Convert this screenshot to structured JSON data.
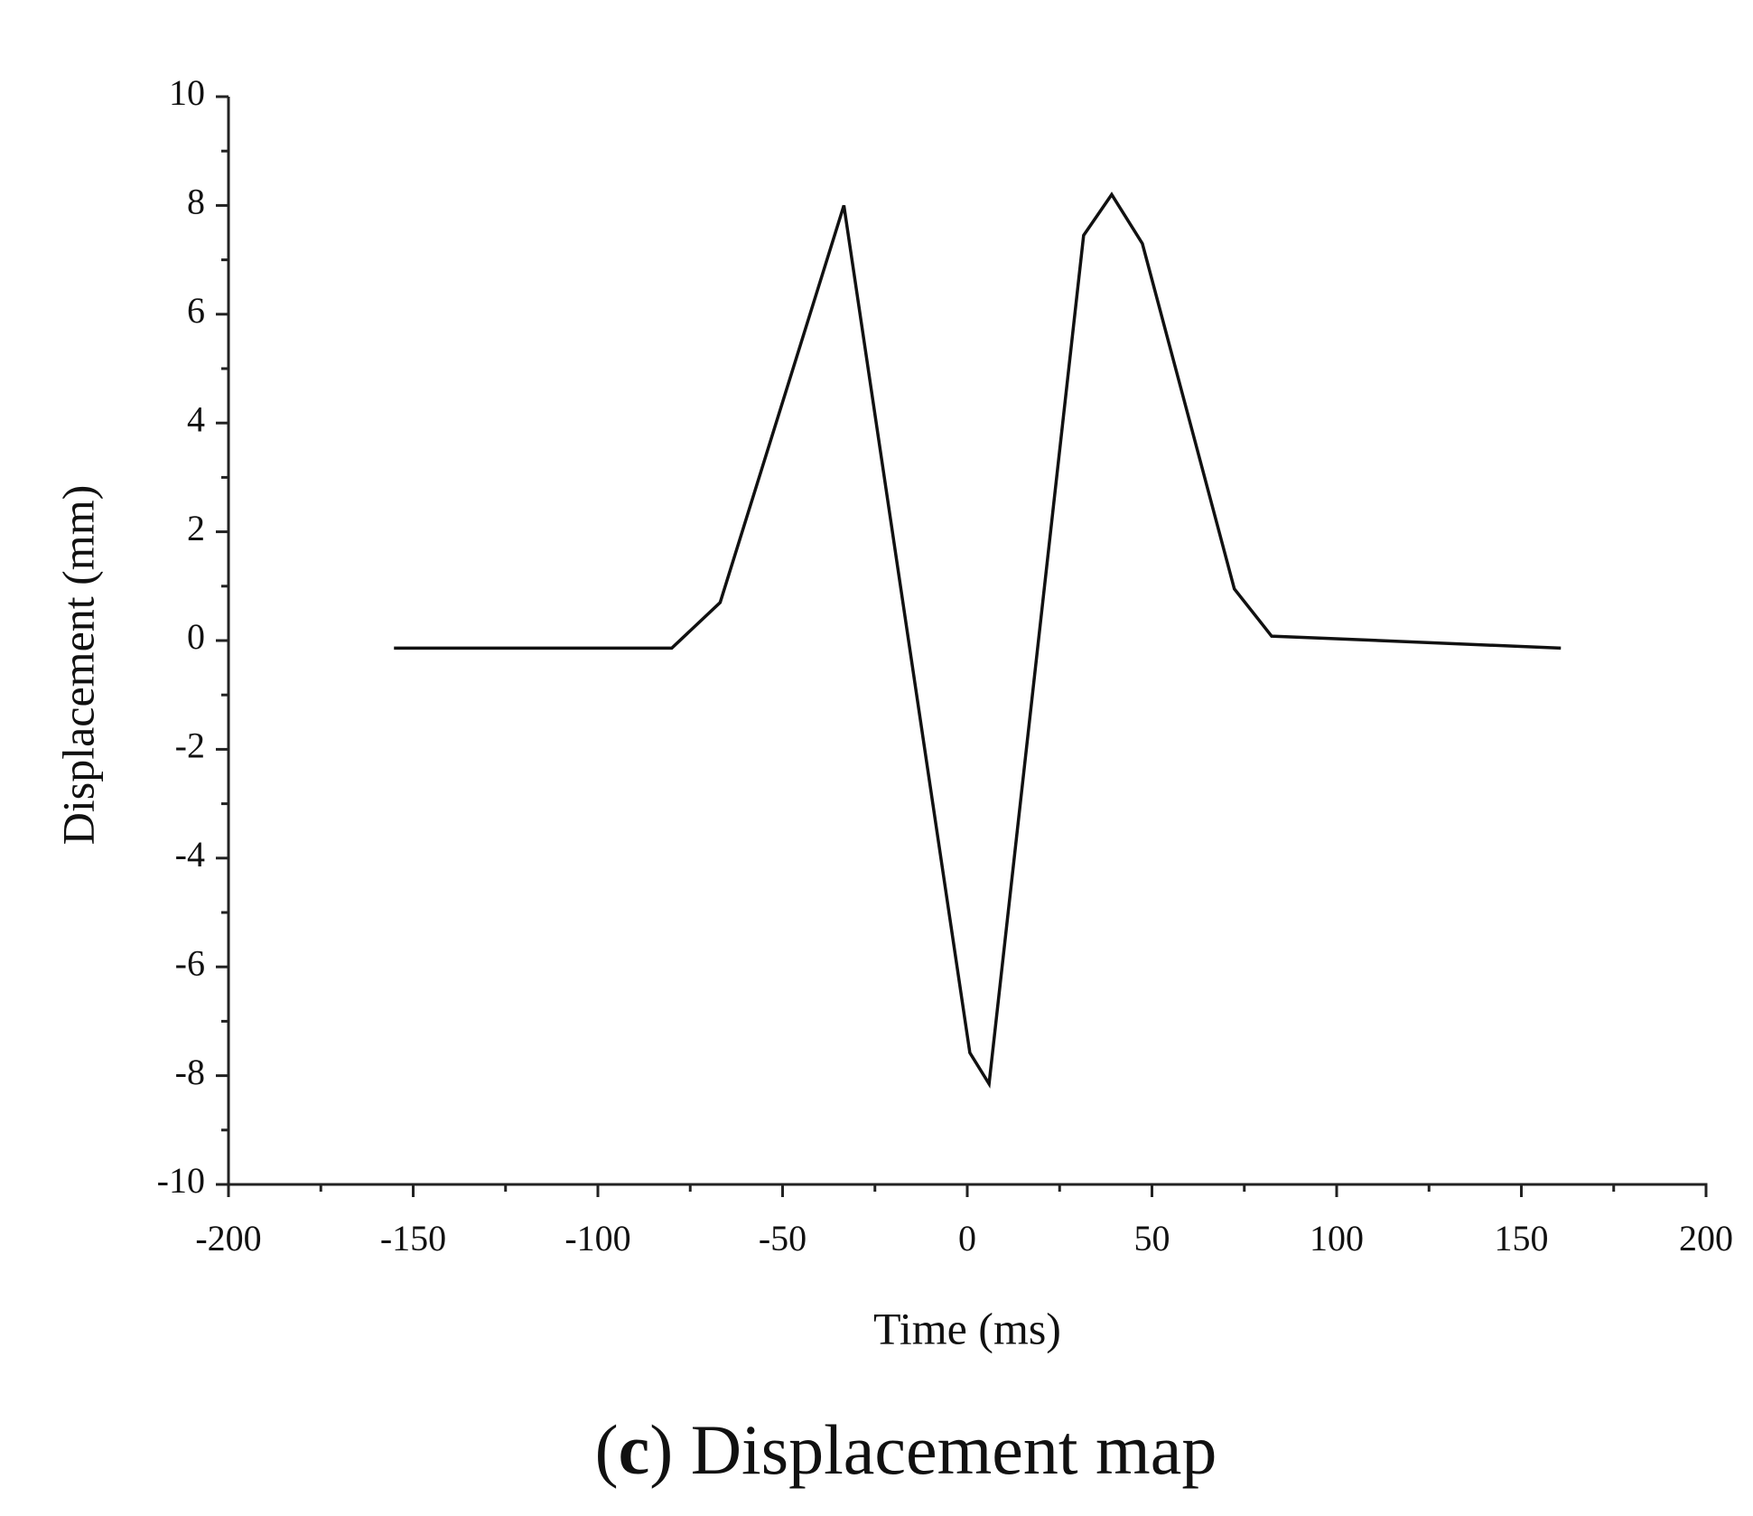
{
  "chart_data": {
    "type": "line",
    "caption": [
      "(",
      "c",
      ") Displacement map"
    ],
    "xlabel": "Time (ms)",
    "ylabel": "Displacement (mm)",
    "xlim": [
      -200,
      200
    ],
    "ylim": [
      -10,
      10
    ],
    "xticks": [
      -200,
      -150,
      -100,
      -50,
      0,
      50,
      100,
      150,
      200
    ],
    "yticks": [
      -10,
      -8,
      -6,
      -4,
      -2,
      0,
      2,
      4,
      6,
      8,
      10
    ],
    "xminorticks": [
      -175,
      -125,
      -75,
      -25,
      25,
      75,
      125,
      175
    ],
    "yminorticks": [
      -9,
      -7,
      -5,
      -3,
      -1,
      1,
      3,
      5,
      7,
      9
    ],
    "color": "#111111",
    "x": [
      -155.2,
      -80,
      -66.9,
      -33.4,
      0.7,
      5.9,
      31.5,
      39.1,
      47.4,
      72.3,
      82.4,
      97.6,
      160.7
    ],
    "values": [
      -0.14,
      -0.14,
      0.7,
      8.0,
      -7.58,
      -8.15,
      7.45,
      8.2,
      7.3,
      0.95,
      0.08,
      0.04,
      -0.14
    ]
  }
}
